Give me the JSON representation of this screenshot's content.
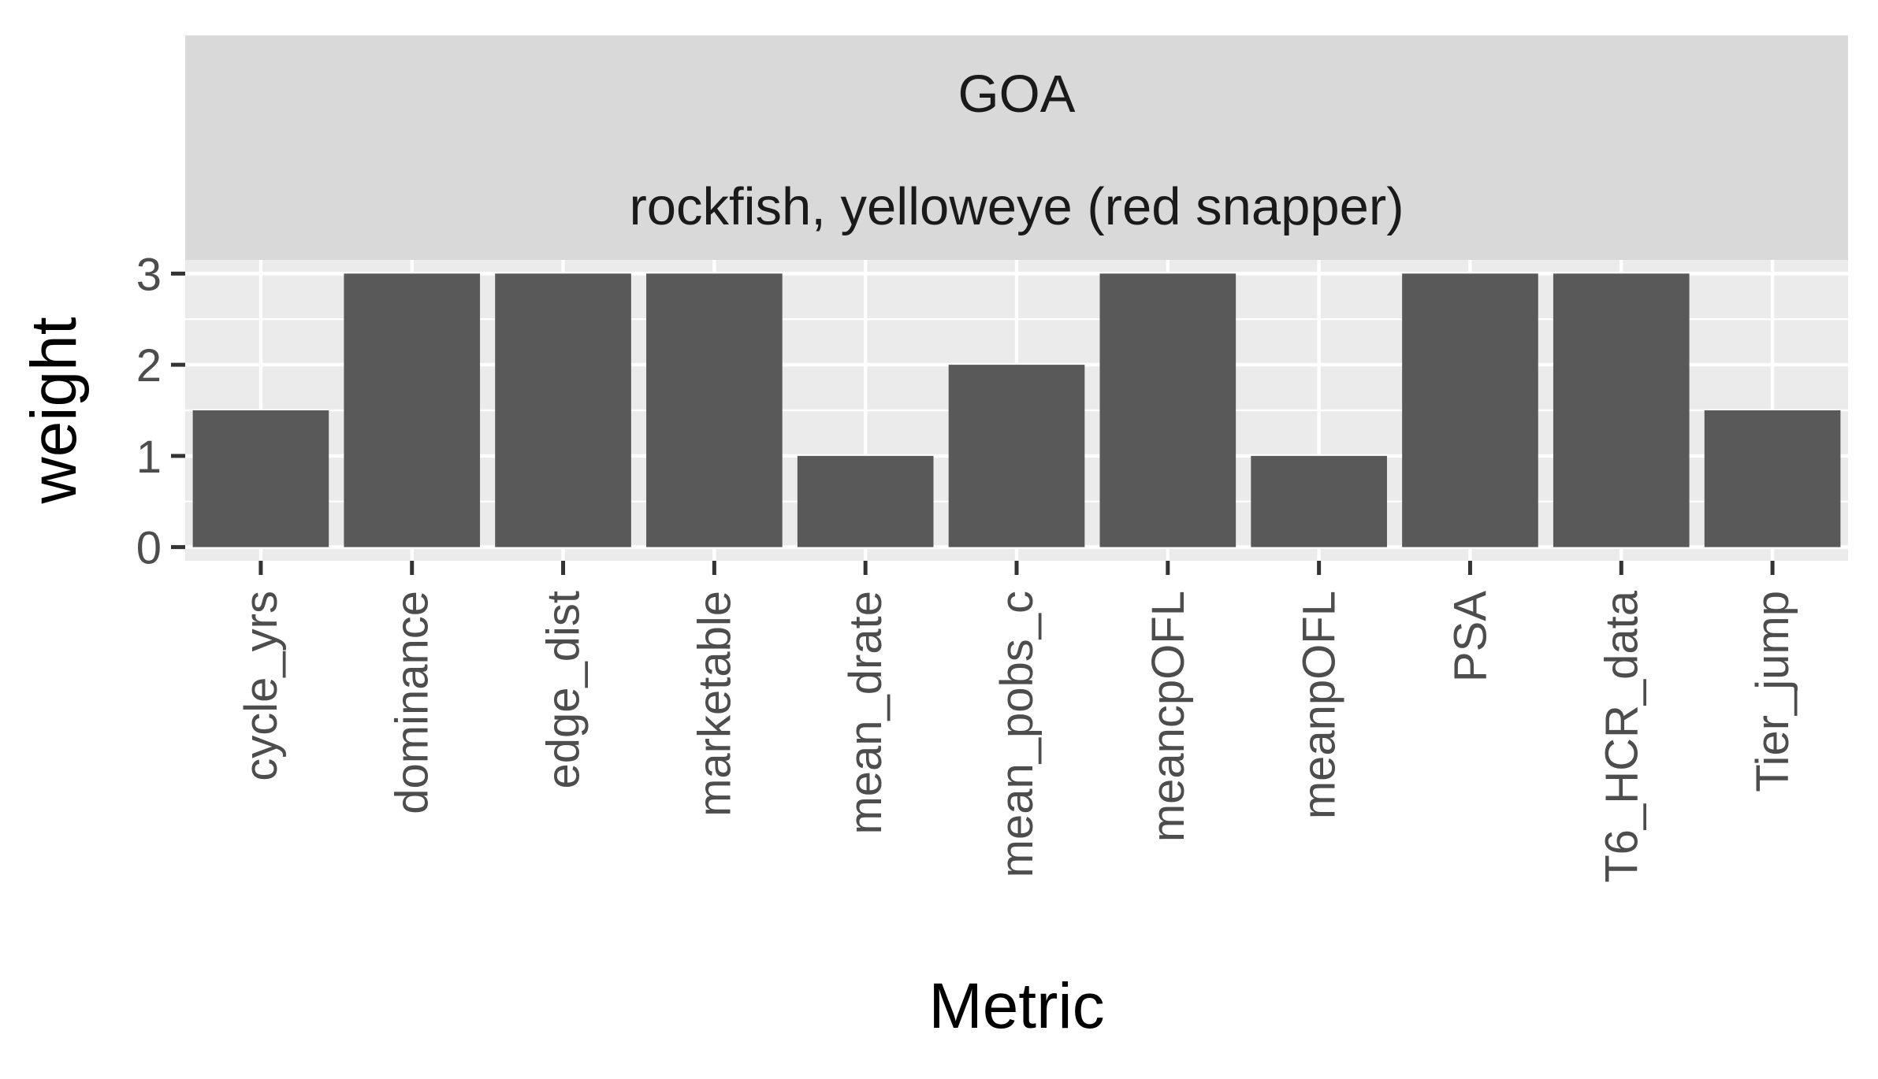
{
  "chart_data": {
    "type": "bar",
    "facet_strips": [
      "GOA",
      "rockfish, yelloweye (red snapper)"
    ],
    "categories": [
      "cycle_yrs",
      "dominance",
      "edge_dist",
      "marketable",
      "mean_drate",
      "mean_pobs_c",
      "meancpOFL",
      "meanpOFL",
      "PSA",
      "T6_HCR_data",
      "Tier_jump"
    ],
    "values": [
      1.5,
      3,
      3,
      3,
      1,
      2,
      3,
      1,
      3,
      3,
      1.5
    ],
    "xlabel": "Metric",
    "ylabel": "weight",
    "ylim": [
      -0.15,
      3.15
    ],
    "yticks": [
      0,
      1,
      2,
      3
    ],
    "grid": true,
    "legend": "none",
    "colors": {
      "bar": "#595959",
      "panel_bg": "#ebebeb",
      "strip_bg": "#d9d9d9",
      "grid": "#ffffff",
      "tick": "#333333"
    }
  }
}
